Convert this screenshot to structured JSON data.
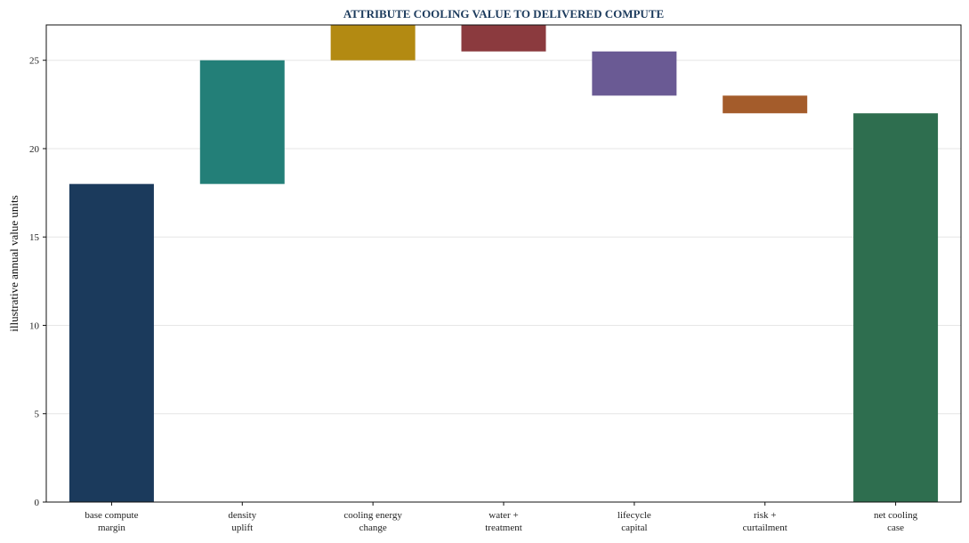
{
  "chart_data": {
    "type": "bar",
    "title": "ATTRIBUTE COOLING VALUE TO DELIVERED COMPUTE",
    "xlabel": "",
    "ylabel": "illustrative annual value units",
    "ylim": [
      0,
      27
    ],
    "yticks": [
      0,
      5,
      10,
      15,
      20,
      25
    ],
    "grid": true,
    "legend": "none",
    "categories": [
      [
        "base compute",
        "margin"
      ],
      [
        "density",
        "uplift"
      ],
      [
        "cooling energy",
        "change"
      ],
      [
        "water +",
        "treatment"
      ],
      [
        "lifecycle",
        "capital"
      ],
      [
        "risk +",
        "curtailment"
      ],
      [
        "net cooling",
        "case"
      ]
    ],
    "bars": [
      {
        "start": 0,
        "end": 18,
        "color": "#1b3a5c"
      },
      {
        "start": 18,
        "end": 25,
        "color": "#237f78"
      },
      {
        "start": 25,
        "end": 27,
        "color": "#b38a12"
      },
      {
        "start": 25.5,
        "end": 27,
        "color": "#8b3a3e"
      },
      {
        "start": 23,
        "end": 25.5,
        "color": "#6a5a94"
      },
      {
        "start": 22,
        "end": 23,
        "color": "#a45c2b"
      },
      {
        "start": 0,
        "end": 22,
        "color": "#2e6e4f"
      }
    ]
  }
}
